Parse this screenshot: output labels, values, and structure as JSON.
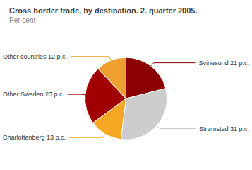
{
  "chart_data": {
    "type": "pie",
    "title": "Cross border trade, by destination. 2. quarter 2005.",
    "subtitle": "Per cent",
    "categories": [
      "Svinesund 21 p.c.",
      "Strømstad 31 p.c.",
      "Charlottenberg 13 p.c.",
      "Other Sweden 23 p.c.",
      "Other countries 12 p.c."
    ],
    "values": [
      21,
      31,
      13,
      23,
      12
    ],
    "colors": [
      "#8B0000",
      "#CCCCCC",
      "#F5A623",
      "#A00000",
      "#F0A030"
    ]
  }
}
